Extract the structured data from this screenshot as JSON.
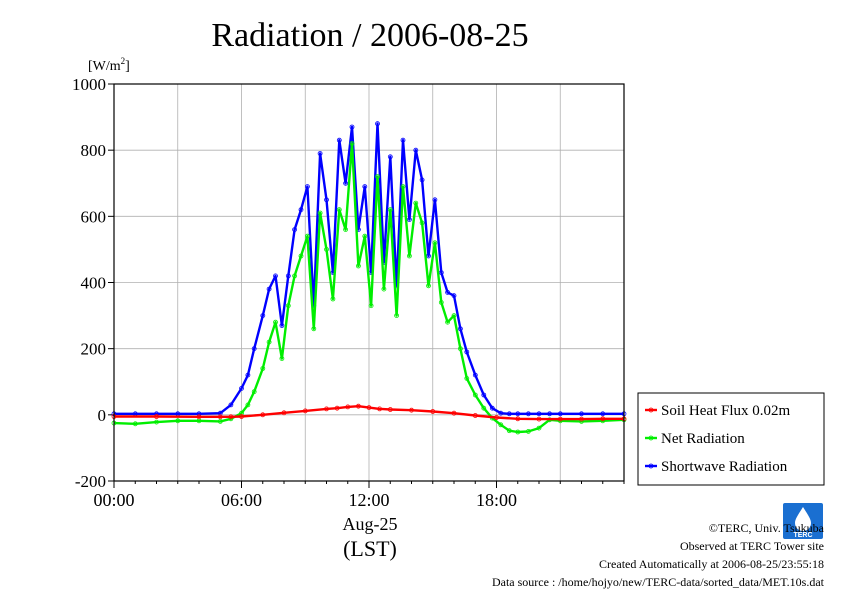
{
  "chart_data": {
    "type": "line",
    "title": "Radiation / 2006-08-25",
    "ylabel": "[W/m",
    "ylabel_sup": "2",
    "ylabel_close": "]",
    "xlabel_date": "Aug-25",
    "xlabel": "(LST)",
    "xlim": [
      0,
      24
    ],
    "ylim": [
      -200,
      1000
    ],
    "xticks": [
      0,
      6,
      12,
      18
    ],
    "xtick_labels": [
      "00:00",
      "06:00",
      "12:00",
      "18:00"
    ],
    "yticks": [
      -200,
      0,
      200,
      400,
      600,
      800,
      1000
    ],
    "ytick_labels": [
      "-200",
      "0",
      "200",
      "400",
      "600",
      "800",
      "1000"
    ],
    "grid": true,
    "legend_position": "right-bottom-outside",
    "series": [
      {
        "name": "Soil Heat Flux 0.02m",
        "color": "#ff0000",
        "x": [
          0,
          2,
          4,
          5,
          5.5,
          6,
          7,
          8,
          9,
          10,
          10.5,
          11,
          11.5,
          12,
          12.5,
          13,
          14,
          15,
          16,
          17,
          18,
          19,
          20,
          21,
          22,
          23,
          24
        ],
        "y": [
          -5,
          -5,
          -6,
          -6,
          -6,
          -5,
          0,
          6,
          12,
          18,
          20,
          24,
          26,
          22,
          18,
          16,
          14,
          10,
          5,
          -2,
          -8,
          -12,
          -13,
          -13,
          -13,
          -12,
          -12
        ]
      },
      {
        "name": "Net Radiation",
        "color": "#00ee00",
        "x": [
          0,
          1,
          2,
          3,
          4,
          5,
          5.5,
          6,
          6.3,
          6.6,
          7,
          7.3,
          7.6,
          7.9,
          8.2,
          8.5,
          8.8,
          9.1,
          9.4,
          9.7,
          10,
          10.3,
          10.6,
          10.9,
          11.2,
          11.5,
          11.8,
          12.1,
          12.4,
          12.7,
          13,
          13.3,
          13.6,
          13.9,
          14.2,
          14.5,
          14.8,
          15.1,
          15.4,
          15.7,
          16,
          16.3,
          16.6,
          17,
          17.4,
          17.8,
          18.2,
          18.6,
          19,
          19.5,
          20,
          20.5,
          21,
          22,
          23,
          24
        ],
        "y": [
          -25,
          -27,
          -22,
          -18,
          -18,
          -20,
          -12,
          5,
          30,
          70,
          140,
          220,
          280,
          170,
          330,
          420,
          480,
          540,
          260,
          610,
          500,
          350,
          620,
          560,
          820,
          450,
          540,
          330,
          720,
          380,
          620,
          300,
          690,
          480,
          640,
          580,
          390,
          520,
          340,
          280,
          300,
          200,
          110,
          60,
          20,
          -10,
          -30,
          -48,
          -52,
          -50,
          -40,
          -15,
          -18,
          -20,
          -18,
          -15
        ]
      },
      {
        "name": "Shortwave Radiation",
        "color": "#0000ff",
        "x": [
          0,
          1,
          2,
          3,
          4,
          5,
          5.5,
          6,
          6.3,
          6.6,
          7,
          7.3,
          7.6,
          7.9,
          8.2,
          8.5,
          8.8,
          9.1,
          9.4,
          9.7,
          10,
          10.3,
          10.6,
          10.9,
          11.2,
          11.5,
          11.8,
          12.1,
          12.4,
          12.7,
          13,
          13.3,
          13.6,
          13.9,
          14.2,
          14.5,
          14.8,
          15.1,
          15.4,
          15.7,
          16,
          16.3,
          16.6,
          17,
          17.4,
          17.8,
          18.2,
          18.6,
          19,
          19.5,
          20,
          20.5,
          21,
          22,
          23,
          24
        ],
        "y": [
          3,
          3,
          3,
          3,
          3,
          5,
          30,
          80,
          120,
          200,
          300,
          380,
          420,
          270,
          420,
          560,
          620,
          690,
          330,
          790,
          650,
          430,
          830,
          700,
          870,
          560,
          690,
          430,
          880,
          460,
          780,
          390,
          830,
          590,
          800,
          710,
          480,
          650,
          430,
          370,
          360,
          260,
          190,
          120,
          60,
          20,
          5,
          3,
          3,
          3,
          3,
          3,
          3,
          3,
          3,
          3
        ]
      }
    ]
  },
  "credits": {
    "copyright": "©TERC, Univ. Tsukuba",
    "observed": "Observed at TERC Tower site",
    "created": "Created Automatically at 2006-08-25/23:55:18",
    "source": "Data source : /home/hojyo/new/TERC-data/sorted_data/MET.10s.dat",
    "logo_text": "TERC"
  }
}
